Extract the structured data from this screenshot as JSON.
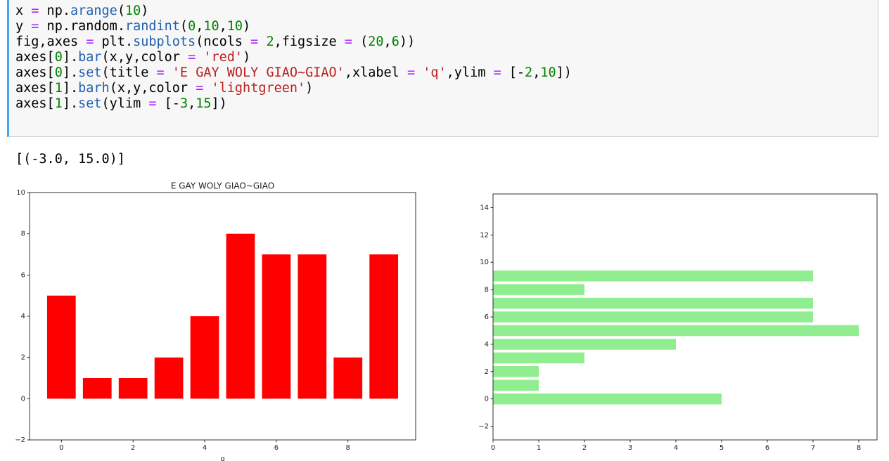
{
  "code": {
    "lines": [
      "x = np.arange(10)",
      "y = np.random.randint(0,10,10)",
      "fig,axes = plt.subplots(ncols = 2,figsize = (20,6))",
      "axes[0].bar(x,y,color = 'red')",
      "axes[0].set(title = 'E GAY WOLY GIAO~GIAO',xlabel = 'q',ylim = [-2,10])",
      "axes[1].barh(x,y,color = 'lightgreen')",
      "axes[1].set(ylim = [-3,15])"
    ]
  },
  "output": {
    "text": "[(-3.0, 15.0)]"
  },
  "chart_data": [
    {
      "type": "bar",
      "title": "E GAY WOLY GIAO~GIAO",
      "xlabel": "q",
      "x": [
        0,
        1,
        2,
        3,
        4,
        5,
        6,
        7,
        8,
        9
      ],
      "values": [
        5,
        1,
        1,
        2,
        4,
        8,
        7,
        7,
        2,
        7
      ],
      "color": "red",
      "xlim": [
        -0.89,
        9.89
      ],
      "xticks": [
        0,
        2,
        4,
        6,
        8
      ],
      "ylim": [
        -2,
        10
      ],
      "yticks": [
        {
          "value": -2,
          "label": "−2"
        },
        0,
        2,
        4,
        6,
        8,
        10
      ]
    },
    {
      "type": "barh",
      "y": [
        0,
        1,
        2,
        3,
        4,
        5,
        6,
        7,
        8,
        9
      ],
      "values": [
        5,
        1,
        1,
        2,
        4,
        8,
        7,
        7,
        2,
        7
      ],
      "color": "lightgreen",
      "xlim": [
        0,
        8.4
      ],
      "xticks": [
        0,
        1,
        2,
        3,
        4,
        5,
        6,
        7,
        8
      ],
      "ylim": [
        -3,
        15
      ],
      "yticks": [
        {
          "value": -2,
          "label": "−2"
        },
        0,
        2,
        4,
        6,
        8,
        10,
        12,
        14
      ]
    }
  ]
}
